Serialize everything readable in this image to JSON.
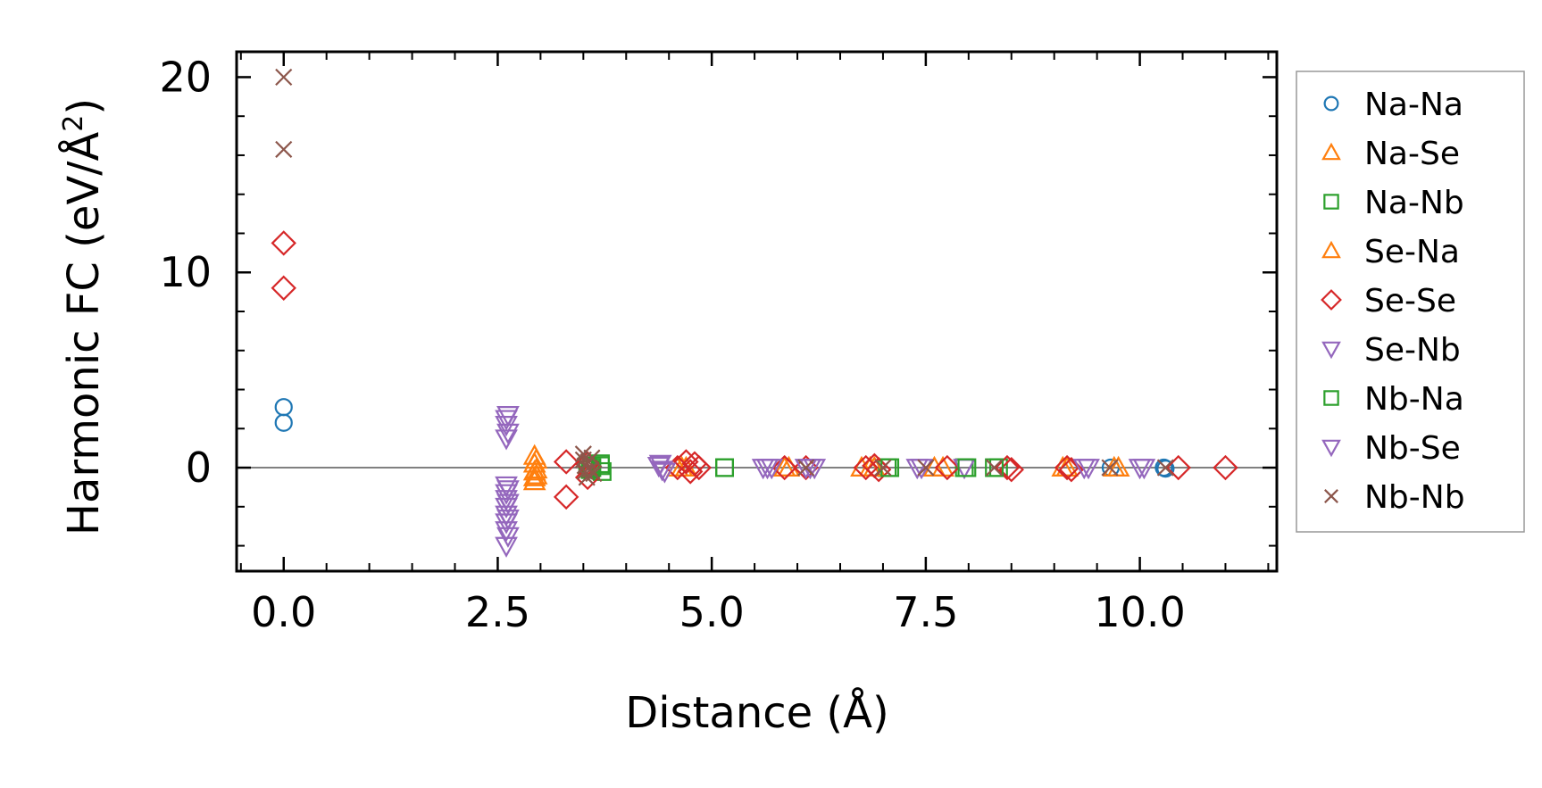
{
  "chart_data": {
    "type": "scatter",
    "title": "",
    "xlabel": "Distance (Å)",
    "ylabel_main": "Harmonic FC (eV/Å",
    "ylabel_sup": "2",
    "ylabel_close": ")",
    "xlim": [
      -0.55,
      11.6
    ],
    "ylim": [
      -5.3,
      21.3
    ],
    "xticks": [
      0.0,
      2.5,
      5.0,
      7.5,
      10.0
    ],
    "xtick_labels": [
      "0.0",
      "2.5",
      "5.0",
      "7.5",
      "10.0"
    ],
    "yticks": [
      0,
      10,
      20
    ],
    "ytick_labels": [
      "0",
      "10",
      "20"
    ],
    "x_minor_step": 0.5,
    "y_minor_step": 2,
    "zero_line": 0,
    "legend_position": "right",
    "series": [
      {
        "name": "Na-Na",
        "marker": "circle",
        "color": "#1f77b4",
        "points": [
          [
            0,
            3.1
          ],
          [
            0,
            2.3
          ],
          [
            9.66,
            0.0
          ],
          [
            10.28,
            0.0
          ],
          [
            10.3,
            -0.05
          ]
        ]
      },
      {
        "name": "Na-Se",
        "marker": "triangle-up",
        "color": "#ff7f0e",
        "points": [
          [
            2.93,
            0.6
          ],
          [
            2.93,
            0.2
          ],
          [
            2.93,
            -0.2
          ],
          [
            2.93,
            -0.5
          ],
          [
            2.93,
            -0.7
          ],
          [
            4.6,
            0.0
          ],
          [
            4.7,
            0.0
          ],
          [
            5.85,
            0.0
          ],
          [
            6.75,
            0.0
          ],
          [
            6.85,
            0.0
          ],
          [
            7.7,
            0.0
          ],
          [
            9.1,
            0.0
          ],
          [
            9.75,
            0.0
          ]
        ]
      },
      {
        "name": "Na-Nb",
        "marker": "square",
        "color": "#2ca02c",
        "points": [
          [
            3.55,
            0.1
          ],
          [
            3.58,
            -0.1
          ],
          [
            3.7,
            0.1
          ],
          [
            3.72,
            -0.2
          ],
          [
            5.15,
            0.0
          ],
          [
            7.05,
            0.0
          ],
          [
            7.95,
            0.0
          ],
          [
            8.35,
            0.0
          ]
        ]
      },
      {
        "name": "Se-Na",
        "marker": "triangle-up",
        "color": "#ff7f0e",
        "points": [
          [
            2.95,
            0.4
          ],
          [
            2.95,
            -0.1
          ],
          [
            2.95,
            -0.4
          ],
          [
            4.65,
            0.0
          ],
          [
            5.9,
            0.0
          ],
          [
            6.9,
            0.0
          ],
          [
            7.6,
            0.0
          ],
          [
            9.15,
            0.0
          ],
          [
            9.7,
            0.0
          ]
        ]
      },
      {
        "name": "Se-Se",
        "marker": "diamond",
        "color": "#d62728",
        "points": [
          [
            0,
            11.5
          ],
          [
            0,
            9.2
          ],
          [
            3.3,
            0.3
          ],
          [
            3.3,
            -1.5
          ],
          [
            3.55,
            0.2
          ],
          [
            3.55,
            -0.5
          ],
          [
            4.6,
            0.0
          ],
          [
            4.7,
            0.3
          ],
          [
            4.75,
            -0.2
          ],
          [
            4.8,
            0.2
          ],
          [
            4.85,
            0.0
          ],
          [
            5.85,
            0.0
          ],
          [
            6.1,
            0.0
          ],
          [
            6.8,
            0.0
          ],
          [
            6.9,
            0.1
          ],
          [
            6.95,
            -0.1
          ],
          [
            7.75,
            0.0
          ],
          [
            8.45,
            0.0
          ],
          [
            8.5,
            -0.1
          ],
          [
            9.15,
            0.0
          ],
          [
            9.2,
            -0.1
          ],
          [
            10.45,
            0.0
          ],
          [
            11.0,
            0.0
          ]
        ]
      },
      {
        "name": "Se-Nb",
        "marker": "triangle-down",
        "color": "#9467bd",
        "points": [
          [
            2.6,
            2.5
          ],
          [
            2.6,
            2.2
          ],
          [
            2.6,
            1.5
          ],
          [
            2.6,
            -0.9
          ],
          [
            2.6,
            -1.3
          ],
          [
            2.6,
            -1.6
          ],
          [
            2.6,
            -2.0
          ],
          [
            2.6,
            -2.4
          ],
          [
            2.6,
            -2.8
          ],
          [
            2.6,
            -3.2
          ],
          [
            2.6,
            -4.0
          ],
          [
            4.4,
            0.2
          ],
          [
            4.42,
            -0.1
          ],
          [
            5.6,
            0.0
          ],
          [
            5.65,
            0.0
          ],
          [
            6.1,
            0.0
          ],
          [
            6.2,
            0.0
          ],
          [
            7.4,
            0.0
          ],
          [
            7.95,
            0.0
          ],
          [
            9.4,
            0.0
          ],
          [
            10.0,
            0.0
          ]
        ]
      },
      {
        "name": "Nb-Na",
        "marker": "square",
        "color": "#2ca02c",
        "points": [
          [
            3.6,
            0.0
          ],
          [
            3.7,
            0.2
          ],
          [
            5.15,
            0.0
          ],
          [
            7.08,
            0.0
          ],
          [
            7.98,
            0.0
          ],
          [
            8.3,
            0.0
          ]
        ]
      },
      {
        "name": "Nb-Se",
        "marker": "triangle-down",
        "color": "#9467bd",
        "points": [
          [
            2.62,
            2.7
          ],
          [
            2.62,
            1.8
          ],
          [
            2.62,
            -1.1
          ],
          [
            2.62,
            -1.8
          ],
          [
            2.62,
            -2.6
          ],
          [
            2.62,
            -3.5
          ],
          [
            4.38,
            0.1
          ],
          [
            4.45,
            -0.2
          ],
          [
            5.7,
            0.0
          ],
          [
            6.15,
            0.0
          ],
          [
            7.45,
            0.0
          ],
          [
            9.35,
            0.0
          ],
          [
            10.05,
            0.0
          ]
        ]
      },
      {
        "name": "Nb-Nb",
        "marker": "x",
        "color": "#8c564b",
        "points": [
          [
            0,
            20.0
          ],
          [
            0,
            16.3
          ],
          [
            3.5,
            0.7
          ],
          [
            3.5,
            0.4
          ],
          [
            3.52,
            0.1
          ],
          [
            3.52,
            -0.2
          ],
          [
            3.54,
            -0.5
          ],
          [
            3.56,
            0.3
          ],
          [
            3.58,
            -0.1
          ],
          [
            3.6,
            0.5
          ],
          [
            3.62,
            -0.3
          ],
          [
            6.1,
            0.0
          ],
          [
            7.0,
            0.0
          ],
          [
            7.5,
            0.0
          ],
          [
            8.3,
            0.0
          ],
          [
            9.65,
            0.0
          ],
          [
            10.3,
            0.0
          ]
        ]
      }
    ]
  }
}
